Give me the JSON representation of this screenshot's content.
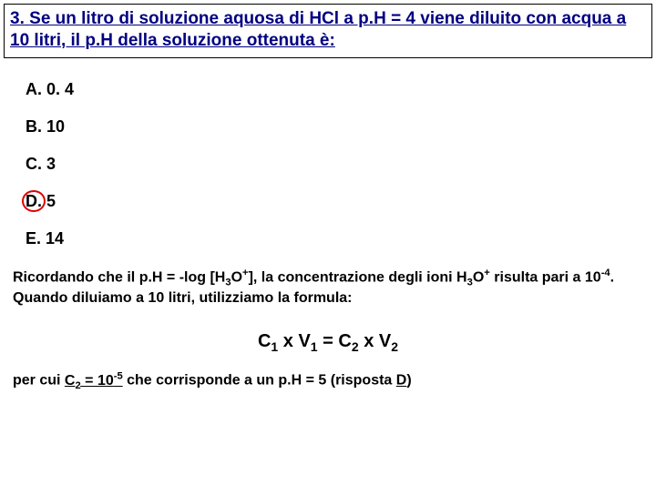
{
  "question": {
    "number": "3.",
    "text": "Se un litro di soluzione aquosa di HCl a p.H = 4 viene diluito con acqua a 10 litri, il p.H della soluzione ottenuta è:",
    "color": "#000080",
    "fontsize": 19,
    "underline": true
  },
  "options": [
    {
      "label": "A.",
      "value": "0. 4",
      "circled": false
    },
    {
      "label": "B.",
      "value": "10",
      "circled": false
    },
    {
      "label": "C.",
      "value": "3",
      "circled": false
    },
    {
      "label": "D.",
      "value": "5",
      "circled": true
    },
    {
      "label": "E.",
      "value": "14",
      "circled": false
    }
  ],
  "circle_color": "#e00000",
  "explanation": {
    "part1_a": "Ricordando che il p.H = -log [H",
    "part1_b": "O",
    "part1_c": "], la concentrazione degli ioni H",
    "part1_d": "O",
    "part1_e": " risulta pari a 10",
    "part1_f": ". Quando diluiamo a 10 litri, utilizziamo la formula:",
    "sub3": "3",
    "supPlus": "+",
    "supM4": "-4"
  },
  "formula": {
    "c": "C",
    "v": "V",
    "one": "1",
    "two": "2",
    "x": " x ",
    "eq": " = "
  },
  "conclusion": {
    "a": "per cui ",
    "b": "C",
    "c": " = 10",
    "d": " che corrisponde a un p.H = 5 (risposta ",
    "e": ")",
    "sub2": "2",
    "supM5": "-5",
    "ans": "D"
  },
  "background": "#ffffff"
}
